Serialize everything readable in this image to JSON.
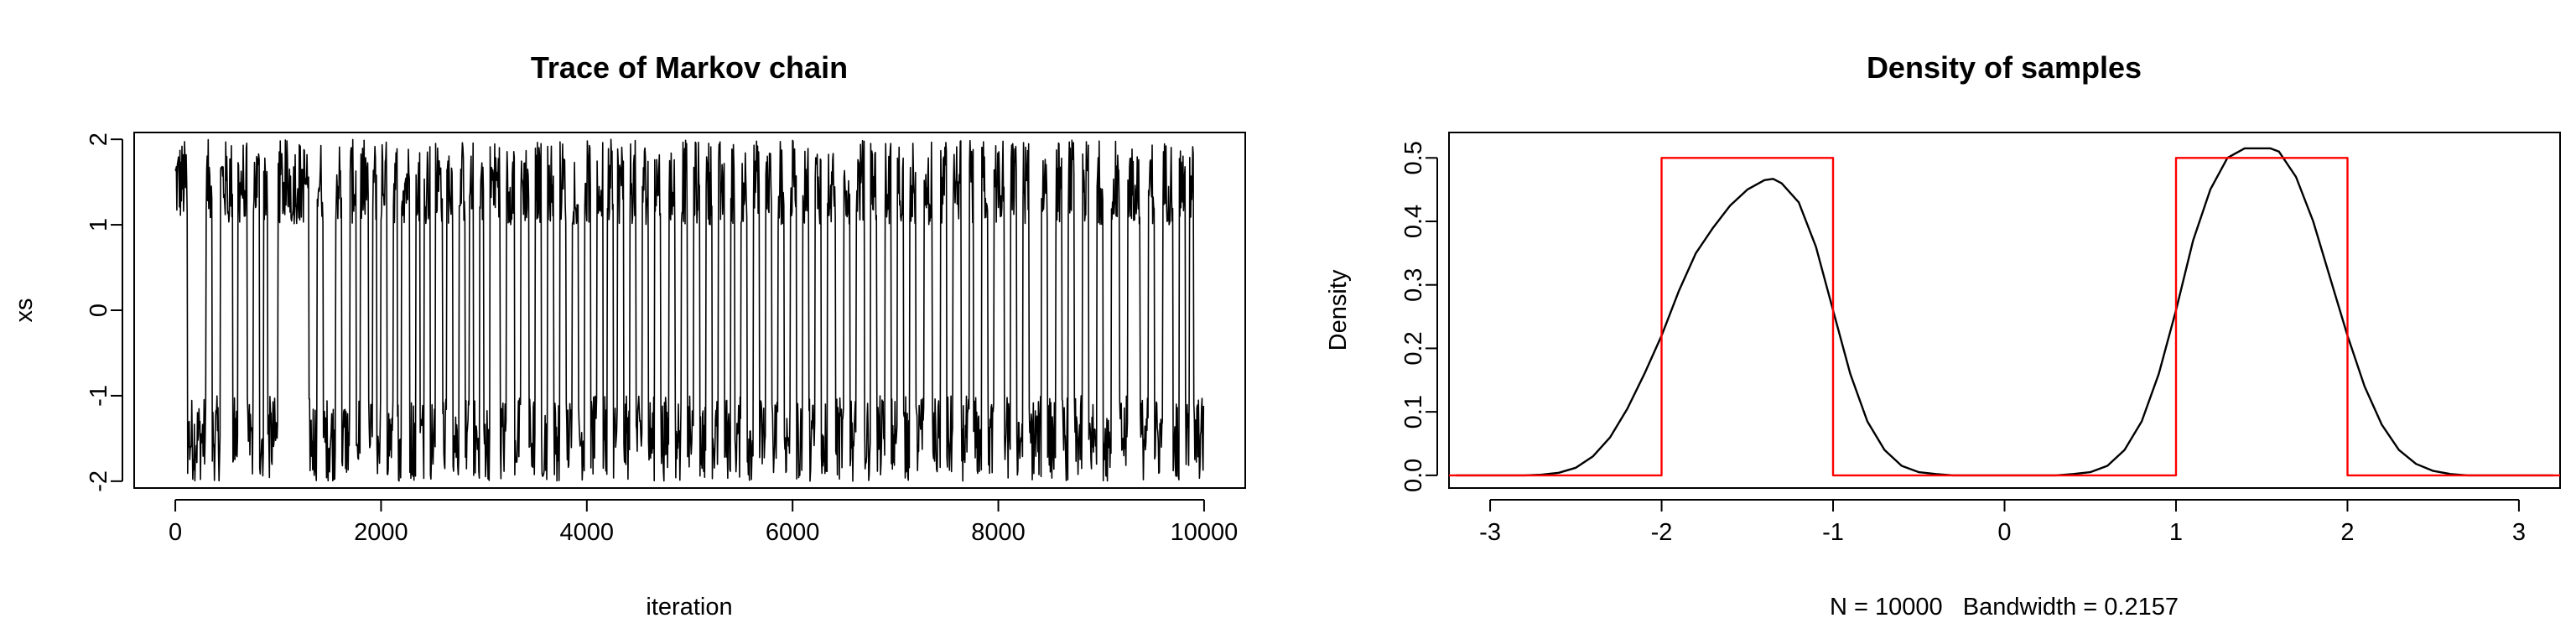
{
  "chart_data": [
    {
      "type": "line",
      "title": "Trace of Markov chain",
      "xlabel": "iteration",
      "ylabel": "xs",
      "xlim": [
        -400,
        10400
      ],
      "ylim": [
        -2.08,
        2.08
      ],
      "x_ticks": [
        0,
        2000,
        4000,
        6000,
        8000,
        10000
      ],
      "x_tick_labels": [
        "0",
        "2000",
        "4000",
        "6000",
        "8000",
        "10000"
      ],
      "y_ticks": [
        -2,
        -1,
        0,
        1,
        2
      ],
      "y_tick_labels": [
        "-2",
        "-1",
        "0",
        "1",
        "2"
      ],
      "grid": false,
      "series": [
        {
          "color": "#000000",
          "n_samples": 10000,
          "sojourns": [
            [
              0,
              "H"
            ],
            [
              120,
              "L"
            ],
            [
              300,
              "H"
            ],
            [
              360,
              "L"
            ],
            [
              440,
              "H"
            ],
            [
              560,
              "L"
            ],
            [
              610,
              "H"
            ],
            [
              700,
              "L"
            ],
            [
              760,
              "H"
            ],
            [
              820,
              "L"
            ],
            [
              860,
              "H"
            ],
            [
              900,
              "L"
            ],
            [
              1000,
              "H"
            ],
            [
              1300,
              "L"
            ],
            [
              1380,
              "H"
            ],
            [
              1440,
              "L"
            ],
            [
              1560,
              "H"
            ],
            [
              1620,
              "L"
            ],
            [
              1700,
              "H"
            ],
            [
              1760,
              "L"
            ],
            [
              1800,
              "H"
            ],
            [
              1880,
              "L"
            ],
            [
              1920,
              "H"
            ],
            [
              1960,
              "L"
            ],
            [
              2000,
              "H"
            ],
            [
              2060,
              "L"
            ],
            [
              2120,
              "H"
            ],
            [
              2160,
              "L"
            ],
            [
              2200,
              "H"
            ],
            [
              2280,
              "L"
            ],
            [
              2340,
              "H"
            ],
            [
              2380,
              "L"
            ],
            [
              2420,
              "H"
            ],
            [
              2480,
              "L"
            ],
            [
              2530,
              "H"
            ],
            [
              2600,
              "L"
            ],
            [
              2640,
              "H"
            ],
            [
              2700,
              "L"
            ],
            [
              2760,
              "H"
            ],
            [
              2820,
              "L"
            ],
            [
              2860,
              "H"
            ],
            [
              2900,
              "L"
            ],
            [
              2960,
              "H"
            ],
            [
              3000,
              "L"
            ],
            [
              3060,
              "H"
            ],
            [
              3160,
              "L"
            ],
            [
              3220,
              "H"
            ],
            [
              3300,
              "L"
            ],
            [
              3360,
              "H"
            ],
            [
              3440,
              "L"
            ],
            [
              3500,
              "H"
            ],
            [
              3560,
              "L"
            ],
            [
              3620,
              "H"
            ],
            [
              3680,
              "L"
            ],
            [
              3740,
              "H"
            ],
            [
              3800,
              "L"
            ],
            [
              3860,
              "H"
            ],
            [
              3920,
              "L"
            ],
            [
              3980,
              "H"
            ],
            [
              4040,
              "L"
            ],
            [
              4100,
              "H"
            ],
            [
              4160,
              "L"
            ],
            [
              4200,
              "H"
            ],
            [
              4260,
              "L"
            ],
            [
              4300,
              "H"
            ],
            [
              4360,
              "L"
            ],
            [
              4420,
              "H"
            ],
            [
              4480,
              "L"
            ],
            [
              4540,
              "H"
            ],
            [
              4600,
              "L"
            ],
            [
              4660,
              "H"
            ],
            [
              4720,
              "L"
            ],
            [
              4800,
              "H"
            ],
            [
              4860,
              "L"
            ],
            [
              4920,
              "H"
            ],
            [
              4980,
              "L"
            ],
            [
              5040,
              "H"
            ],
            [
              5100,
              "L"
            ],
            [
              5160,
              "H"
            ],
            [
              5220,
              "L"
            ],
            [
              5280,
              "H"
            ],
            [
              5340,
              "L"
            ],
            [
              5400,
              "H"
            ],
            [
              5440,
              "L"
            ],
            [
              5500,
              "H"
            ],
            [
              5560,
              "L"
            ],
            [
              5620,
              "H"
            ],
            [
              5680,
              "L"
            ],
            [
              5740,
              "H"
            ],
            [
              5800,
              "L"
            ],
            [
              5860,
              "H"
            ],
            [
              5920,
              "L"
            ],
            [
              5980,
              "H"
            ],
            [
              6040,
              "L"
            ],
            [
              6100,
              "H"
            ],
            [
              6160,
              "L"
            ],
            [
              6220,
              "H"
            ],
            [
              6280,
              "L"
            ],
            [
              6340,
              "H"
            ],
            [
              6420,
              "L"
            ],
            [
              6500,
              "H"
            ],
            [
              6560,
              "L"
            ],
            [
              6620,
              "H"
            ],
            [
              6700,
              "L"
            ],
            [
              6760,
              "H"
            ],
            [
              6820,
              "L"
            ],
            [
              6900,
              "H"
            ],
            [
              6960,
              "L"
            ],
            [
              7020,
              "H"
            ],
            [
              7080,
              "L"
            ],
            [
              7140,
              "H"
            ],
            [
              7200,
              "L"
            ],
            [
              7280,
              "H"
            ],
            [
              7360,
              "L"
            ],
            [
              7440,
              "H"
            ],
            [
              7500,
              "L"
            ],
            [
              7560,
              "H"
            ],
            [
              7640,
              "L"
            ],
            [
              7720,
              "H"
            ],
            [
              7760,
              "L"
            ],
            [
              7840,
              "H"
            ],
            [
              7900,
              "L"
            ],
            [
              7960,
              "H"
            ],
            [
              8060,
              "L"
            ],
            [
              8120,
              "H"
            ],
            [
              8180,
              "L"
            ],
            [
              8240,
              "H"
            ],
            [
              8300,
              "L"
            ],
            [
              8420,
              "H"
            ],
            [
              8480,
              "L"
            ],
            [
              8560,
              "H"
            ],
            [
              8620,
              "L"
            ],
            [
              8680,
              "H"
            ],
            [
              8740,
              "L"
            ],
            [
              8820,
              "H"
            ],
            [
              8880,
              "L"
            ],
            [
              8960,
              "H"
            ],
            [
              9020,
              "L"
            ],
            [
              9100,
              "H"
            ],
            [
              9180,
              "L"
            ],
            [
              9260,
              "H"
            ],
            [
              9380,
              "L"
            ],
            [
              9460,
              "H"
            ],
            [
              9520,
              "L"
            ],
            [
              9600,
              "H"
            ],
            [
              9700,
              "L"
            ],
            [
              9760,
              "H"
            ],
            [
              9820,
              "L"
            ],
            [
              9860,
              "H"
            ],
            [
              9900,
              "L"
            ]
          ]
        }
      ]
    },
    {
      "type": "line",
      "title": "Density of samples",
      "xlabel": "N = 10000   Bandwidth = 0.2157",
      "ylabel": "Density",
      "xlim": [
        -3.24,
        3.24
      ],
      "ylim": [
        -0.02,
        0.54
      ],
      "x_ticks": [
        -3,
        -2,
        -1,
        0,
        1,
        2,
        3
      ],
      "x_tick_labels": [
        "-3",
        "-2",
        "-1",
        "0",
        "1",
        "2",
        "3"
      ],
      "y_ticks": [
        0.0,
        0.1,
        0.2,
        0.3,
        0.4,
        0.5
      ],
      "y_tick_labels": [
        "0.0",
        "0.1",
        "0.2",
        "0.3",
        "0.4",
        "0.5"
      ],
      "grid": false,
      "series": [
        {
          "color": "#000000",
          "x": [
            -3.2,
            -3.0,
            -2.8,
            -2.7,
            -2.6,
            -2.5,
            -2.4,
            -2.3,
            -2.2,
            -2.1,
            -2.0,
            -1.9,
            -1.8,
            -1.7,
            -1.6,
            -1.5,
            -1.4,
            -1.35,
            -1.3,
            -1.2,
            -1.1,
            -1.0,
            -0.9,
            -0.8,
            -0.7,
            -0.6,
            -0.5,
            -0.4,
            -0.3,
            -0.2,
            0.0,
            0.2,
            0.3,
            0.4,
            0.5,
            0.6,
            0.7,
            0.8,
            0.9,
            1.0,
            1.1,
            1.2,
            1.3,
            1.4,
            1.5,
            1.55,
            1.6,
            1.7,
            1.8,
            1.9,
            2.0,
            2.1,
            2.2,
            2.3,
            2.4,
            2.5,
            2.6,
            2.7,
            2.8,
            3.0,
            3.2
          ],
          "y": [
            0.0,
            0.0,
            0.0,
            0.001,
            0.004,
            0.012,
            0.03,
            0.06,
            0.105,
            0.16,
            0.22,
            0.29,
            0.35,
            0.39,
            0.425,
            0.45,
            0.465,
            0.467,
            0.46,
            0.43,
            0.36,
            0.26,
            0.16,
            0.085,
            0.04,
            0.015,
            0.005,
            0.002,
            0.0,
            0.0,
            0.0,
            0.0,
            0.0,
            0.002,
            0.005,
            0.015,
            0.04,
            0.085,
            0.16,
            0.26,
            0.37,
            0.45,
            0.5,
            0.515,
            0.515,
            0.515,
            0.51,
            0.47,
            0.4,
            0.31,
            0.22,
            0.14,
            0.08,
            0.04,
            0.018,
            0.007,
            0.002,
            0.0,
            0.0,
            0.0,
            0.0
          ]
        },
        {
          "color": "#ff0000",
          "x": [
            -3.24,
            -2,
            -2,
            -1,
            -1,
            1,
            1,
            2,
            2,
            3.24
          ],
          "y": [
            0,
            0,
            0.5,
            0.5,
            0,
            0,
            0.5,
            0.5,
            0,
            0
          ]
        }
      ]
    }
  ]
}
